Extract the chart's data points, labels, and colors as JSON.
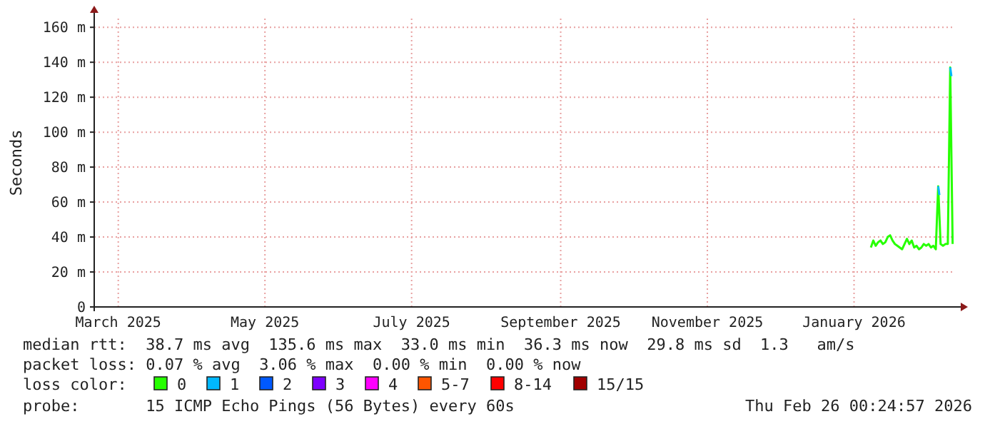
{
  "chart_data": {
    "type": "line",
    "ylabel": "Seconds",
    "legend_title": "loss color:",
    "legend": "bottom",
    "grid": true,
    "xlim": [
      "2025-03-06",
      "2026-02-27"
    ],
    "xticks": [
      {
        "value": "2025-03-16",
        "label": "March 2025"
      },
      {
        "value": "2025-05-16",
        "label": "May 2025"
      },
      {
        "value": "2025-07-16",
        "label": "July 2025"
      },
      {
        "value": "2025-09-16",
        "label": "September 2025"
      },
      {
        "value": "2025-11-16",
        "label": "November 2025"
      },
      {
        "value": "2026-01-16",
        "label": "January 2026"
      }
    ],
    "ylim": [
      0,
      165
    ],
    "yticks": [
      0,
      {
        "value": 20,
        "label": "20 m"
      },
      {
        "value": 40,
        "label": "40 m"
      },
      {
        "value": 60,
        "label": "60 m"
      },
      {
        "value": 80,
        "label": "80 m"
      },
      {
        "value": 100,
        "label": "100 m"
      },
      {
        "value": 120,
        "label": "120 m"
      },
      {
        "value": 140,
        "label": "140 m"
      },
      {
        "value": 160,
        "label": "160 m"
      }
    ],
    "x": [
      "2026-01-23",
      "2026-01-24",
      "2026-01-25",
      "2026-01-26",
      "2026-01-27",
      "2026-01-28",
      "2026-01-29",
      "2026-01-30",
      "2026-01-31",
      "2026-02-01",
      "2026-02-02",
      "2026-02-03",
      "2026-02-04",
      "2026-02-05",
      "2026-02-06",
      "2026-02-07",
      "2026-02-08",
      "2026-02-09",
      "2026-02-10",
      "2026-02-11",
      "2026-02-12",
      "2026-02-13",
      "2026-02-14",
      "2026-02-15",
      "2026-02-16",
      "2026-02-17",
      "2026-02-18",
      "2026-02-19",
      "2026-02-20",
      "2026-02-21",
      "2026-02-22",
      "2026-02-23",
      "2026-02-24",
      "2026-02-25",
      "2026-02-26"
    ],
    "series": [
      {
        "name": "0",
        "color": "#26ff00",
        "values": [
          34,
          38,
          35,
          37,
          38,
          36,
          37,
          40,
          41,
          38,
          36,
          35,
          34,
          33,
          36,
          39,
          36,
          38,
          34,
          35,
          33,
          34,
          36,
          35,
          36,
          34,
          35,
          33,
          69,
          36,
          35,
          36,
          36,
          137,
          36
        ]
      },
      {
        "name": "1",
        "color": "#00b8ff",
        "x": [
          "2026-02-20",
          "2026-02-20T12:00",
          "2026-02-23",
          "2026-02-25",
          "2026-02-25T12:00"
        ],
        "values": [
          69,
          64,
          null,
          137,
          132
        ]
      },
      {
        "name": "2",
        "color": "#0059ff",
        "values": [
          null,
          null,
          null,
          null,
          null,
          null,
          null,
          null,
          null,
          null,
          null,
          null,
          null,
          null,
          null,
          null,
          null,
          null,
          null,
          null,
          null,
          null,
          null,
          null,
          null,
          null,
          null,
          null,
          null,
          null,
          null,
          null,
          null,
          null,
          null
        ]
      },
      {
        "name": "3",
        "color": "#7e00ff",
        "values": [
          null,
          null,
          null,
          null,
          null,
          null,
          null,
          null,
          null,
          null,
          null,
          null,
          null,
          null,
          null,
          null,
          null,
          null,
          null,
          null,
          null,
          null,
          null,
          null,
          null,
          null,
          null,
          null,
          null,
          null,
          null,
          null,
          null,
          null,
          null
        ]
      },
      {
        "name": "4",
        "color": "#ff00ff",
        "values": [
          null,
          null,
          null,
          null,
          null,
          null,
          null,
          null,
          null,
          null,
          null,
          null,
          null,
          null,
          null,
          null,
          null,
          null,
          null,
          null,
          null,
          null,
          null,
          null,
          null,
          null,
          null,
          null,
          null,
          null,
          null,
          null,
          null,
          null,
          null
        ]
      },
      {
        "name": "5-7",
        "color": "#ff5500",
        "values": [
          null,
          null,
          null,
          null,
          null,
          null,
          null,
          null,
          null,
          null,
          null,
          null,
          null,
          null,
          null,
          null,
          null,
          null,
          null,
          null,
          null,
          null,
          null,
          null,
          null,
          null,
          null,
          null,
          null,
          null,
          null,
          null,
          null,
          null,
          null
        ]
      },
      {
        "name": "8-14",
        "color": "#ff0000",
        "values": [
          null,
          null,
          null,
          null,
          null,
          null,
          null,
          null,
          null,
          null,
          null,
          null,
          null,
          null,
          null,
          null,
          null,
          null,
          null,
          null,
          null,
          null,
          null,
          null,
          null,
          null,
          null,
          null,
          null,
          null,
          null,
          null,
          null,
          null,
          null
        ]
      },
      {
        "name": "15/15",
        "color": "#a10000",
        "values": [
          null,
          null,
          null,
          null,
          null,
          null,
          null,
          null,
          null,
          null,
          null,
          null,
          null,
          null,
          null,
          null,
          null,
          null,
          null,
          null,
          null,
          null,
          null,
          null,
          null,
          null,
          null,
          null,
          null,
          null,
          null,
          null,
          null,
          null,
          null
        ]
      }
    ],
    "annotations": [
      "median rtt:  38.7 ms avg  135.6 ms max  33.0 ms min  36.3 ms now  29.8 ms sd  1.3   am/s",
      "packet loss: 0.07 % avg  3.06 % max  0.00 % min  0.00 % now",
      "probe:       15 ICMP Echo Pings (56 Bytes) every 60s",
      "Thu Feb 26 00:24:57 2026"
    ]
  }
}
